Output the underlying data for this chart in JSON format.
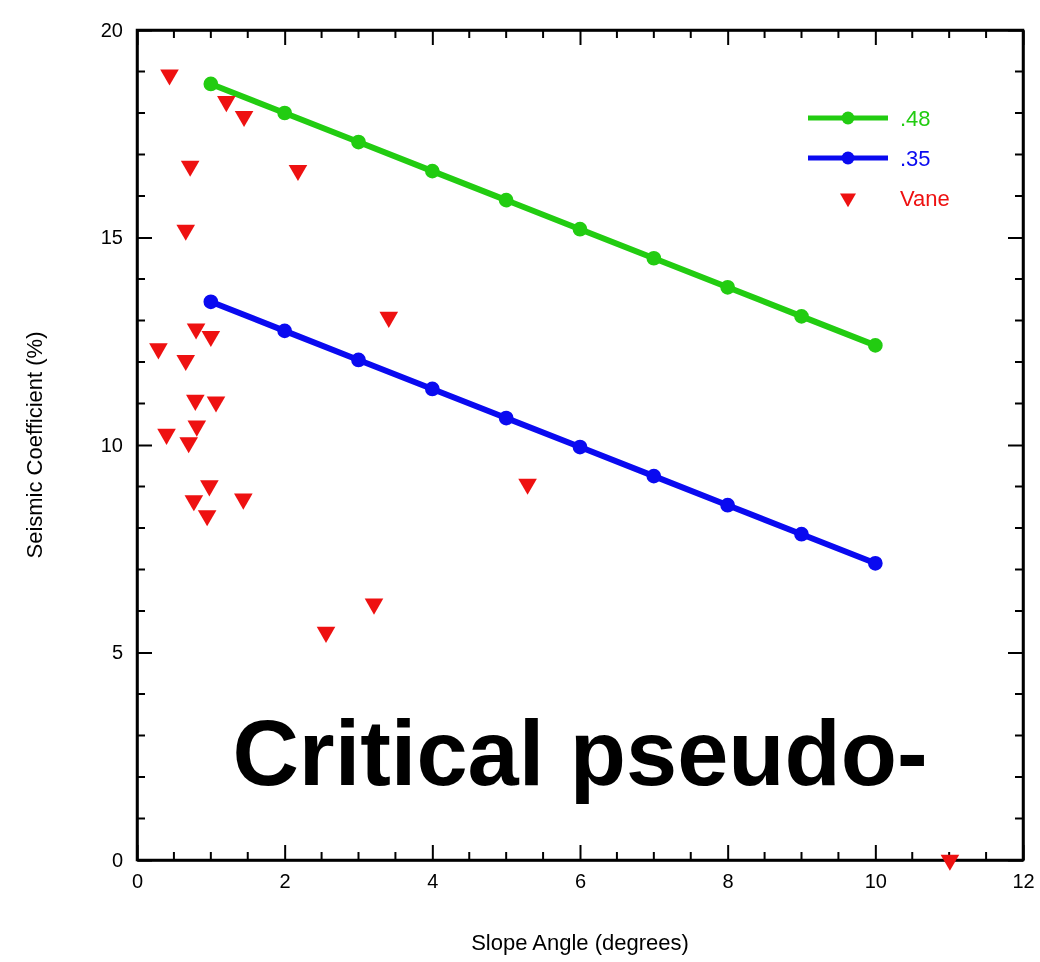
{
  "chart_data": {
    "type": "line",
    "xlabel": "Slope Angle (degrees)",
    "ylabel": "Seismic Coefficient (%)",
    "xlim": [
      0,
      12
    ],
    "xticks": [
      0,
      2,
      4,
      6,
      8,
      10,
      12
    ],
    "ylim": [
      0,
      20
    ],
    "yticks": [
      0,
      5,
      10,
      15,
      20
    ],
    "grid": false,
    "legend": "top right",
    "annotations": [
      "Critical pseudo-"
    ],
    "series": [
      {
        "name": ".48",
        "marker": "circle",
        "color": "#22cc11",
        "x": [
          1,
          2,
          3,
          4,
          5,
          6,
          7,
          8,
          9,
          10
        ],
        "values": [
          18.7,
          18.0,
          17.3,
          16.6,
          15.9,
          15.2,
          14.5,
          13.8,
          13.1,
          12.4
        ]
      },
      {
        "name": ".35",
        "marker": "circle",
        "color": "#0a0af0",
        "x": [
          1,
          2,
          3,
          4,
          5,
          6,
          7,
          8,
          9,
          10
        ],
        "values": [
          13.45,
          12.75,
          12.05,
          11.35,
          10.65,
          9.95,
          9.25,
          8.55,
          7.85,
          7.15
        ]
      },
      {
        "name": "Vane",
        "type": "scatter",
        "marker": "triangle",
        "color": "#ee1111",
        "x": [
          0.44,
          1.21,
          1.45,
          0.72,
          2.18,
          0.66,
          3.41,
          0.8,
          1.0,
          0.29,
          0.66,
          0.79,
          1.07,
          0.81,
          0.4,
          0.7,
          0.98,
          0.77,
          1.44,
          0.95,
          5.29,
          3.21,
          2.56,
          11.01
        ],
        "values": [
          18.92,
          18.28,
          17.92,
          16.72,
          16.62,
          15.18,
          13.08,
          12.8,
          12.62,
          12.32,
          12.04,
          11.08,
          11.04,
          10.46,
          10.26,
          10.06,
          9.02,
          8.66,
          8.7,
          8.3,
          9.06,
          6.17,
          5.49,
          0.0
        ]
      }
    ]
  }
}
